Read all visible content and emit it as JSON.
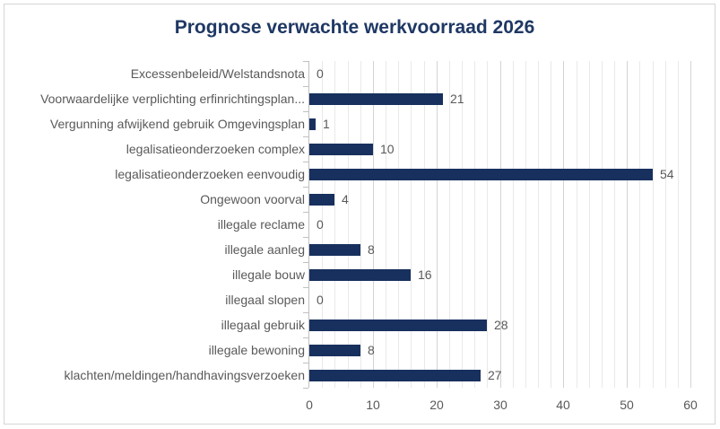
{
  "chart_data": {
    "type": "bar",
    "orientation": "horizontal",
    "title": "Prognose verwachte werkvoorraad 2026",
    "categories": [
      "Excessenbeleid/Welstandsnota",
      "Voorwaardelijke verplichting erfinrichtingsplan...",
      "Vergunning afwijkend gebruik Omgevingsplan",
      "legalisatieonderzoeken complex",
      "legalisatieonderzoeken eenvoudig",
      "Ongewoon voorval",
      "illegale reclame",
      "illegale aanleg",
      "illegale bouw",
      "illegaal slopen",
      "illegaal gebruik",
      "illegale bewoning",
      "klachten/meldingen/handhavingsverzoeken"
    ],
    "values": [
      0,
      21,
      1,
      10,
      54,
      4,
      0,
      8,
      16,
      0,
      28,
      8,
      27
    ],
    "data_labels": "outside-end",
    "xlabel": "",
    "ylabel": "",
    "xlim": [
      0,
      60
    ],
    "x_tick_labels": [
      "0",
      "10",
      "20",
      "30",
      "40",
      "50",
      "60"
    ],
    "x_major_unit": 10,
    "x_minor_unit": 2,
    "grid": "vertical major and minor gridlines on",
    "legend": "none",
    "colors": {
      "bar": "#17305e",
      "title": "#1f3864",
      "label_text": "#595959",
      "minor_gridline": "#e9e9e9",
      "major_gridline": "#d3d3d3",
      "axis_line": "#c0c0c0",
      "chart_border": "#d5d5d5",
      "background": "#ffffff"
    }
  }
}
